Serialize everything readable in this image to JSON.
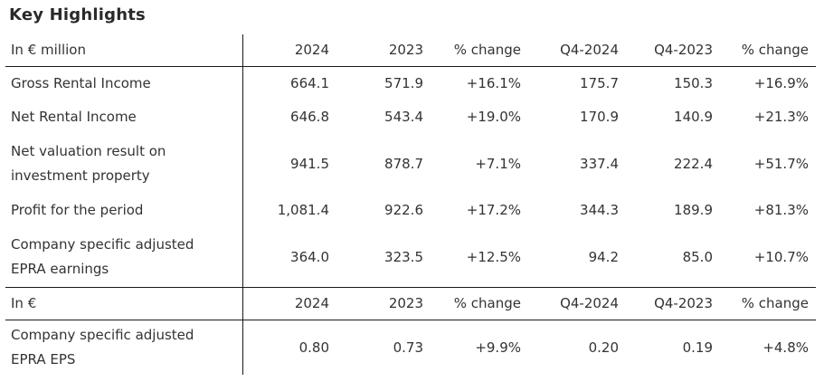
{
  "title": "Key Highlights",
  "section1": {
    "headers": [
      "In € million",
      "2024",
      "2023",
      "% change",
      "Q4-2024",
      "Q4-2023",
      "% change"
    ],
    "rows": [
      {
        "label": "Gross Rental Income",
        "values": [
          "664.1",
          "571.9",
          "+16.1%",
          "175.7",
          "150.3",
          "+16.9%"
        ]
      },
      {
        "label": "Net Rental Income",
        "values": [
          "646.8",
          "543.4",
          "+19.0%",
          "170.9",
          "140.9",
          "+21.3%"
        ]
      },
      {
        "label_line1": "Net valuation result on",
        "label_line2": "investment property",
        "values": [
          "941.5",
          "878.7",
          "+7.1%",
          "337.4",
          "222.4",
          "+51.7%"
        ]
      },
      {
        "label": "Profit for the period",
        "values": [
          "1,081.4",
          "922.6",
          "+17.2%",
          "344.3",
          "189.9",
          "+81.3%"
        ]
      },
      {
        "label_line1": "Company specific adjusted",
        "label_line2": "EPRA earnings",
        "values": [
          "364.0",
          "323.5",
          "+12.5%",
          "94.2",
          "85.0",
          "+10.7%"
        ]
      }
    ]
  },
  "section2": {
    "headers": [
      "In €",
      "2024",
      "2023",
      "% change",
      "Q4-2024",
      "Q4-2023",
      "% change"
    ],
    "rows": [
      {
        "label_line1": "Company specific adjusted",
        "label_line2": "EPRA EPS",
        "values": [
          "0.80",
          "0.73",
          "+9.9%",
          "0.20",
          "0.19",
          "+4.8%"
        ]
      }
    ]
  }
}
